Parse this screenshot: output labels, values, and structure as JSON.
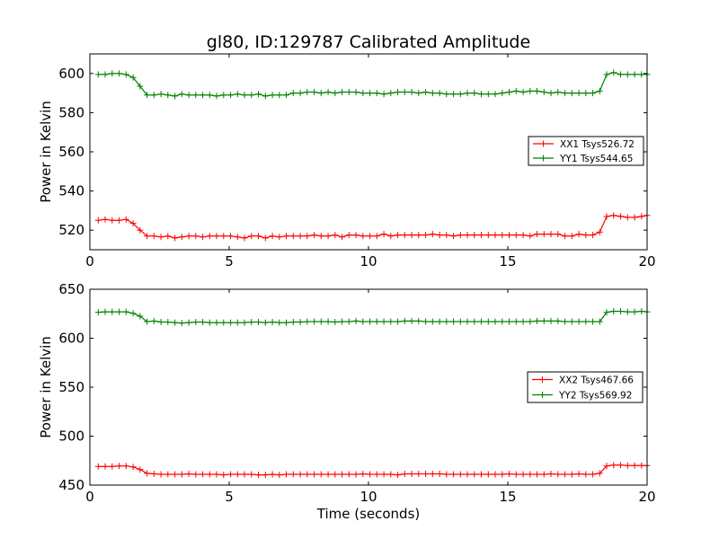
{
  "title": "gl80, ID:129787 Calibrated Amplitude",
  "xlabel": "Time (seconds)",
  "chart_data": [
    {
      "type": "line",
      "title": "gl80, ID:129787 Calibrated Amplitude",
      "xlabel": "",
      "ylabel": "Power in Kelvin",
      "xlim": [
        0,
        20
      ],
      "ylim": [
        510,
        610
      ],
      "xticks": [
        0,
        5,
        10,
        15,
        20
      ],
      "yticks": [
        520,
        540,
        560,
        580,
        600
      ],
      "legend_position": "center-right",
      "grid": false,
      "series": [
        {
          "name": "XX1 Tsys526.72",
          "color": "#ff0000",
          "x": [
            0.3,
            0.55,
            0.8,
            1.05,
            1.3,
            1.55,
            1.8,
            2.05,
            2.3,
            2.55,
            2.8,
            3.05,
            3.3,
            3.55,
            3.8,
            4.05,
            4.3,
            4.55,
            4.8,
            5.05,
            5.3,
            5.55,
            5.8,
            6.05,
            6.3,
            6.55,
            6.8,
            7.05,
            7.3,
            7.55,
            7.8,
            8.05,
            8.3,
            8.55,
            8.8,
            9.05,
            9.3,
            9.55,
            9.8,
            10.05,
            10.3,
            10.55,
            10.8,
            11.05,
            11.3,
            11.55,
            11.8,
            12.05,
            12.3,
            12.55,
            12.8,
            13.05,
            13.3,
            13.55,
            13.8,
            14.05,
            14.3,
            14.55,
            14.8,
            15.05,
            15.3,
            15.55,
            15.8,
            16.05,
            16.3,
            16.55,
            16.8,
            17.05,
            17.3,
            17.55,
            17.8,
            18.05,
            18.3,
            18.55,
            18.8,
            19.05,
            19.3,
            19.55,
            19.8,
            20.0
          ],
          "values": [
            525,
            525.5,
            525,
            525,
            525.5,
            523.5,
            520,
            517,
            517,
            516.5,
            517,
            516,
            516.5,
            517,
            517,
            516.5,
            517,
            517,
            517,
            517,
            516.5,
            516,
            517,
            517,
            516,
            517,
            516.5,
            517,
            517,
            517,
            517,
            517.5,
            517,
            517,
            517.5,
            516.5,
            517.5,
            517.5,
            517,
            517,
            517,
            518,
            517,
            517.5,
            517.5,
            517.5,
            517.5,
            517.5,
            518,
            517.5,
            517.5,
            517,
            517.5,
            517.5,
            517.5,
            517.5,
            517.5,
            517.5,
            517.5,
            517.5,
            517.5,
            517.5,
            517,
            518,
            518,
            518,
            518,
            517,
            517,
            518,
            517.5,
            517.5,
            519,
            527,
            527.5,
            527,
            526.5,
            526.5,
            527,
            527.5
          ]
        },
        {
          "name": "YY1 Tsys544.65",
          "color": "#008000",
          "x": [
            0.3,
            0.55,
            0.8,
            1.05,
            1.3,
            1.55,
            1.8,
            2.05,
            2.3,
            2.55,
            2.8,
            3.05,
            3.3,
            3.55,
            3.8,
            4.05,
            4.3,
            4.55,
            4.8,
            5.05,
            5.3,
            5.55,
            5.8,
            6.05,
            6.3,
            6.55,
            6.8,
            7.05,
            7.3,
            7.55,
            7.8,
            8.05,
            8.3,
            8.55,
            8.8,
            9.05,
            9.3,
            9.55,
            9.8,
            10.05,
            10.3,
            10.55,
            10.8,
            11.05,
            11.3,
            11.55,
            11.8,
            12.05,
            12.3,
            12.55,
            12.8,
            13.05,
            13.3,
            13.55,
            13.8,
            14.05,
            14.3,
            14.55,
            14.8,
            15.05,
            15.3,
            15.55,
            15.8,
            16.05,
            16.3,
            16.55,
            16.8,
            17.05,
            17.3,
            17.55,
            17.8,
            18.05,
            18.3,
            18.55,
            18.8,
            19.05,
            19.3,
            19.55,
            19.8,
            20.0
          ],
          "values": [
            599.5,
            599.5,
            600,
            600,
            599.5,
            598,
            593.5,
            589,
            589,
            589.5,
            589,
            588.5,
            589.5,
            589,
            589,
            589,
            589,
            588.5,
            589,
            589,
            589.5,
            589,
            589,
            589.5,
            588.5,
            589,
            589,
            589,
            590,
            590,
            590.5,
            590.5,
            590,
            590.5,
            590,
            590.5,
            590.5,
            590.5,
            590,
            590,
            590,
            589.5,
            590,
            590.5,
            590.5,
            590.5,
            590,
            590.5,
            590,
            590,
            589.5,
            589.5,
            589.5,
            590,
            590,
            589.5,
            589.5,
            589.5,
            590,
            590.5,
            591,
            590.5,
            591,
            591,
            590.5,
            590,
            590.5,
            590,
            590,
            590,
            590,
            590,
            591,
            599.5,
            600.5,
            599.5,
            599.5,
            599.5,
            599.5,
            599.5
          ]
        }
      ]
    },
    {
      "type": "line",
      "title": "",
      "xlabel": "Time (seconds)",
      "ylabel": "Power in Kelvin",
      "xlim": [
        0,
        20
      ],
      "ylim": [
        450,
        650
      ],
      "xticks": [
        0,
        5,
        10,
        15,
        20
      ],
      "yticks": [
        450,
        500,
        550,
        600,
        650
      ],
      "legend_position": "center-right",
      "grid": false,
      "series": [
        {
          "name": "XX2 Tsys467.66",
          "color": "#ff0000",
          "x": [
            0.3,
            0.55,
            0.8,
            1.05,
            1.3,
            1.55,
            1.8,
            2.05,
            2.3,
            2.55,
            2.8,
            3.05,
            3.3,
            3.55,
            3.8,
            4.05,
            4.3,
            4.55,
            4.8,
            5.05,
            5.3,
            5.55,
            5.8,
            6.05,
            6.3,
            6.55,
            6.8,
            7.05,
            7.3,
            7.55,
            7.8,
            8.05,
            8.3,
            8.55,
            8.8,
            9.05,
            9.3,
            9.55,
            9.8,
            10.05,
            10.3,
            10.55,
            10.8,
            11.05,
            11.3,
            11.55,
            11.8,
            12.05,
            12.3,
            12.55,
            12.8,
            13.05,
            13.3,
            13.55,
            13.8,
            14.05,
            14.3,
            14.55,
            14.8,
            15.05,
            15.3,
            15.55,
            15.8,
            16.05,
            16.3,
            16.55,
            16.8,
            17.05,
            17.3,
            17.55,
            17.8,
            18.05,
            18.3,
            18.55,
            18.8,
            19.05,
            19.3,
            19.55,
            19.8,
            20.0
          ],
          "values": [
            469,
            469,
            469,
            469.5,
            469.5,
            468.5,
            466,
            462,
            461.5,
            461,
            461,
            461,
            461,
            461.5,
            461,
            461,
            461,
            461,
            460.5,
            461,
            461,
            461,
            461,
            460.5,
            460.5,
            461,
            460.5,
            461,
            461,
            461,
            461,
            461,
            461,
            461,
            461,
            461,
            461,
            461,
            461.5,
            461,
            461,
            461,
            461,
            460.5,
            461.5,
            461.5,
            461.5,
            461.5,
            461.5,
            461.5,
            461,
            461,
            461,
            461,
            461,
            461,
            461,
            461,
            461,
            461.5,
            461,
            461,
            461,
            461,
            461,
            461.5,
            461,
            461,
            461,
            461.5,
            461,
            461,
            462,
            469.5,
            470.5,
            470.5,
            470,
            470,
            470,
            470
          ]
        },
        {
          "name": "YY2 Tsys569.92",
          "color": "#008000",
          "x": [
            0.3,
            0.55,
            0.8,
            1.05,
            1.3,
            1.55,
            1.8,
            2.05,
            2.3,
            2.55,
            2.8,
            3.05,
            3.3,
            3.55,
            3.8,
            4.05,
            4.3,
            4.55,
            4.8,
            5.05,
            5.3,
            5.55,
            5.8,
            6.05,
            6.3,
            6.55,
            6.8,
            7.05,
            7.3,
            7.55,
            7.8,
            8.05,
            8.3,
            8.55,
            8.8,
            9.05,
            9.3,
            9.55,
            9.8,
            10.05,
            10.3,
            10.55,
            10.8,
            11.05,
            11.3,
            11.55,
            11.8,
            12.05,
            12.3,
            12.55,
            12.8,
            13.05,
            13.3,
            13.55,
            13.8,
            14.05,
            14.3,
            14.55,
            14.8,
            15.05,
            15.3,
            15.55,
            15.8,
            16.05,
            16.3,
            16.55,
            16.8,
            17.05,
            17.3,
            17.55,
            17.8,
            18.05,
            18.3,
            18.55,
            18.8,
            19.05,
            19.3,
            19.55,
            19.8,
            20.0
          ],
          "values": [
            626.5,
            627,
            627,
            627,
            627,
            625.5,
            622.5,
            617,
            617.5,
            616.5,
            616.5,
            616,
            615.5,
            616,
            616.5,
            616.5,
            616,
            616,
            616,
            616,
            616,
            616,
            616.5,
            616.5,
            616,
            616.5,
            616,
            616,
            616.5,
            616.5,
            617,
            617,
            617,
            617,
            616.5,
            617,
            617,
            617.5,
            617,
            617,
            617,
            617,
            617,
            617,
            617.5,
            617.5,
            617.5,
            617,
            617,
            617,
            617,
            617,
            617,
            617,
            617,
            617,
            617,
            617,
            617,
            617,
            617,
            617,
            617,
            617.5,
            617.5,
            617.5,
            617.5,
            617,
            617,
            617,
            617,
            617,
            617,
            626.5,
            627.5,
            627.5,
            627,
            627,
            627.5,
            627
          ]
        }
      ]
    }
  ]
}
